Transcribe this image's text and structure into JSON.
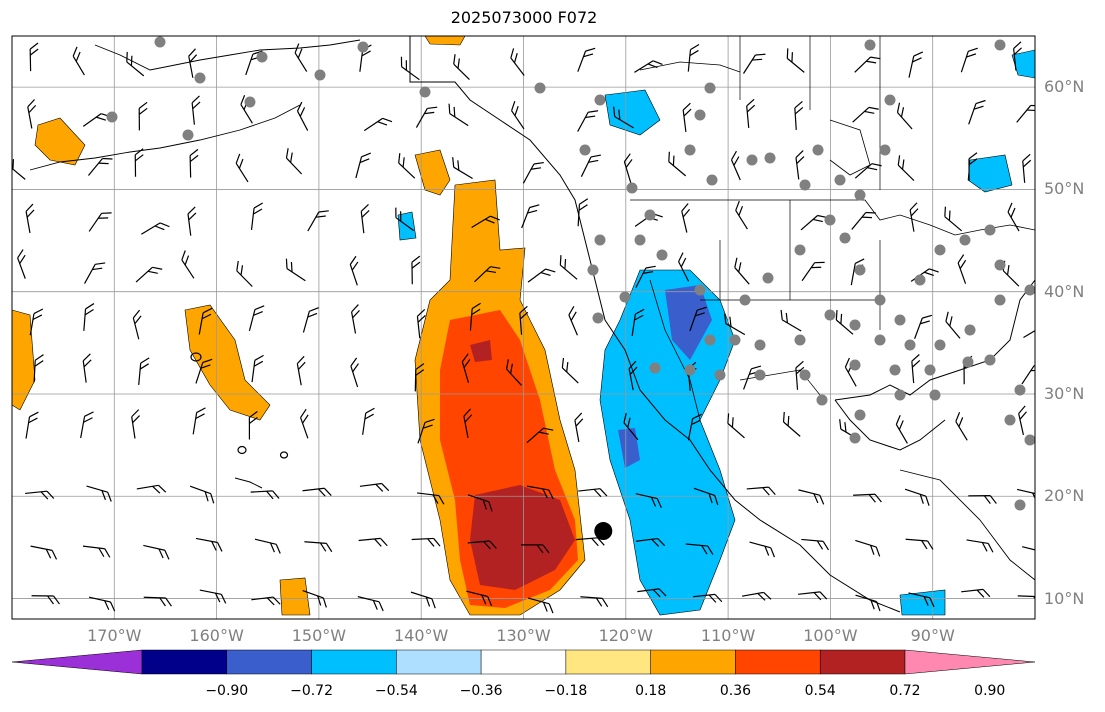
{
  "title": "2025073000 F072",
  "map": {
    "lon_range": [
      -180,
      -80
    ],
    "lat_range": [
      8,
      65
    ],
    "lat_labels": [
      "10°N",
      "20°N",
      "30°N",
      "40°N",
      "50°N",
      "60°N"
    ],
    "lat_values": [
      10,
      20,
      30,
      40,
      50,
      60
    ],
    "lon_labels": [
      "170°W",
      "160°W",
      "150°W",
      "140°W",
      "130°W",
      "120°W",
      "110°W",
      "100°W",
      "90°W"
    ],
    "lon_values": [
      -170,
      -160,
      -150,
      -140,
      -130,
      -120,
      -110,
      -100,
      -90
    ],
    "gridlines": true,
    "marker": {
      "lon": -122.2,
      "lat": 16.6
    }
  },
  "colorbar": {
    "ticks": [
      "−0.90",
      "−0.72",
      "−0.54",
      "−0.36",
      "−0.18",
      "0.18",
      "0.36",
      "0.54",
      "0.72",
      "0.90"
    ],
    "colors": [
      "#9b30d9",
      "#00008b",
      "#3a5fcd",
      "#00bfff",
      "#aedfff",
      "#ffffff",
      "#ffe680",
      "#ffa500",
      "#ff4500",
      "#b22222",
      "#ff88b0"
    ]
  }
}
